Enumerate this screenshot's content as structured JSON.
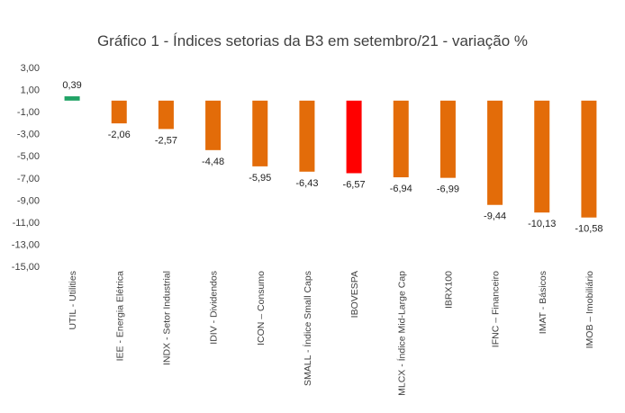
{
  "chart_data": {
    "type": "bar",
    "title": "Gráfico 1 - Índices setorias da B3 em setembro/21 - variação %",
    "categories": [
      "UTIL - Utilities",
      "IEE - Energia Elétrica",
      "INDX - Setor Industrial",
      "IDIV - Dividendos",
      "ICON – Consumo",
      "SMALL - Índice Small Caps",
      "IBOVESPA",
      "MLCX - Índice Mid-Large Cap",
      "IBRX100",
      "IFNC – Financeiro",
      "IMAT - Básicos",
      "IMOB – Imobiliário"
    ],
    "values": [
      0.39,
      -2.06,
      -2.57,
      -4.48,
      -5.95,
      -6.43,
      -6.57,
      -6.94,
      -6.99,
      -9.44,
      -10.13,
      -10.58
    ],
    "value_labels": [
      "0,39",
      "-2,06",
      "-2,57",
      "-4,48",
      "-5,95",
      "-6,43",
      "-6,57",
      "-6,94",
      "-6,99",
      "-9,44",
      "-10,13",
      "-10,58"
    ],
    "bar_colors": [
      "#21a366",
      "#e36c09",
      "#e36c09",
      "#e36c09",
      "#e36c09",
      "#e36c09",
      "#ff0000",
      "#e36c09",
      "#e36c09",
      "#e36c09",
      "#e36c09",
      "#e36c09"
    ],
    "yticks": [
      3,
      1,
      -1,
      -3,
      -5,
      -7,
      -9,
      -11,
      -13,
      -15
    ],
    "ytick_labels": [
      "3,00",
      "1,00",
      "-1,00",
      "-3,00",
      "-5,00",
      "-7,00",
      "-9,00",
      "-11,00",
      "-13,00",
      "-15,00"
    ],
    "ylim": [
      -15,
      3
    ],
    "grid": false,
    "legend": "none"
  }
}
